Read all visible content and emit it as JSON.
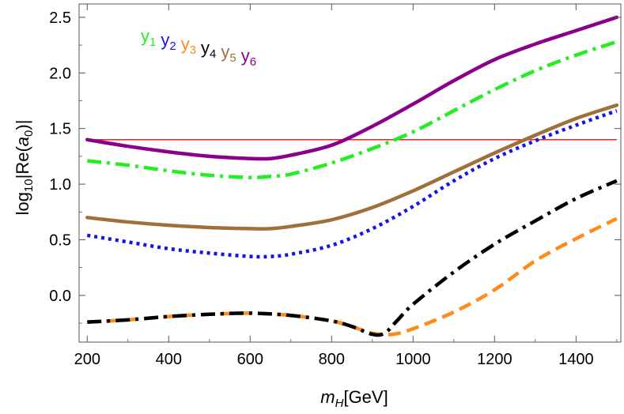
{
  "chart_data": {
    "type": "line",
    "xlabel": {
      "main": "m",
      "sub": "H",
      "unit": "[GeV]"
    },
    "ylabel": {
      "pre": "log",
      "sub": "10",
      "mid": "|Re(",
      "var": "a",
      "varsub": "0",
      "post": ")|"
    },
    "xlim": [
      180,
      1510
    ],
    "ylim": [
      -0.42,
      2.62
    ],
    "xticks": [
      200,
      400,
      600,
      800,
      1000,
      1200,
      1400
    ],
    "xtick_labels": [
      "200",
      "400",
      "600",
      "800",
      "1000",
      "1200",
      "1400"
    ],
    "yticks": [
      0.0,
      0.5,
      1.0,
      1.5,
      2.0,
      2.5
    ],
    "ytick_labels": [
      "0.0",
      "0.5",
      "1.0",
      "1.5",
      "2.0",
      "2.5"
    ],
    "legend": {
      "placement": "top-left"
    },
    "reference_line": {
      "y": 1.4,
      "color": "#ff0000"
    },
    "series": [
      {
        "name": "y",
        "sub": "1",
        "color": "#22ee22",
        "style": "dashdot",
        "x": [
          200,
          300,
          400,
          500,
          600,
          650,
          700,
          800,
          900,
          1000,
          1100,
          1200,
          1300,
          1400,
          1500
        ],
        "values": [
          1.21,
          1.17,
          1.12,
          1.08,
          1.06,
          1.07,
          1.09,
          1.19,
          1.32,
          1.47,
          1.66,
          1.85,
          2.02,
          2.16,
          2.28
        ]
      },
      {
        "name": "y",
        "sub": "2",
        "color": "#1414e6",
        "style": "dotted",
        "x": [
          200,
          300,
          400,
          500,
          600,
          650,
          700,
          800,
          900,
          1000,
          1100,
          1200,
          1300,
          1400,
          1500
        ],
        "values": [
          0.54,
          0.48,
          0.42,
          0.38,
          0.35,
          0.35,
          0.37,
          0.45,
          0.6,
          0.8,
          1.03,
          1.23,
          1.39,
          1.53,
          1.66
        ]
      },
      {
        "name": "y",
        "sub": "3",
        "color": "#ff8c1a",
        "style": "dashed",
        "x": [
          200,
          300,
          400,
          500,
          600,
          700,
          800,
          850,
          900,
          950,
          1000,
          1100,
          1200,
          1300,
          1400,
          1500
        ],
        "values": [
          -0.24,
          -0.22,
          -0.19,
          -0.17,
          -0.16,
          -0.18,
          -0.23,
          -0.28,
          -0.34,
          -0.35,
          -0.3,
          -0.15,
          0.05,
          0.31,
          0.51,
          0.69
        ]
      },
      {
        "name": "y",
        "sub": "4",
        "color": "#000000",
        "style": "dashdot",
        "x": [
          200,
          300,
          400,
          500,
          600,
          700,
          800,
          850,
          900,
          930,
          960,
          1000,
          1100,
          1200,
          1300,
          1400,
          1500
        ],
        "values": [
          -0.24,
          -0.22,
          -0.19,
          -0.17,
          -0.16,
          -0.18,
          -0.23,
          -0.28,
          -0.35,
          -0.34,
          -0.23,
          -0.08,
          0.21,
          0.46,
          0.67,
          0.87,
          1.03
        ]
      },
      {
        "name": "y",
        "sub": "5",
        "color": "#a0703c",
        "style": "solid",
        "x": [
          200,
          300,
          400,
          500,
          600,
          650,
          700,
          800,
          900,
          1000,
          1100,
          1200,
          1300,
          1400,
          1500
        ],
        "values": [
          0.7,
          0.66,
          0.63,
          0.61,
          0.6,
          0.6,
          0.62,
          0.68,
          0.79,
          0.94,
          1.11,
          1.28,
          1.44,
          1.59,
          1.71
        ]
      },
      {
        "name": "y",
        "sub": "6",
        "color": "#8b008b",
        "style": "solid",
        "x": [
          200,
          300,
          400,
          500,
          600,
          650,
          700,
          800,
          900,
          1000,
          1100,
          1200,
          1300,
          1400,
          1500
        ],
        "values": [
          1.4,
          1.34,
          1.29,
          1.25,
          1.23,
          1.23,
          1.26,
          1.35,
          1.52,
          1.72,
          1.93,
          2.12,
          2.26,
          2.38,
          2.5
        ]
      }
    ]
  }
}
